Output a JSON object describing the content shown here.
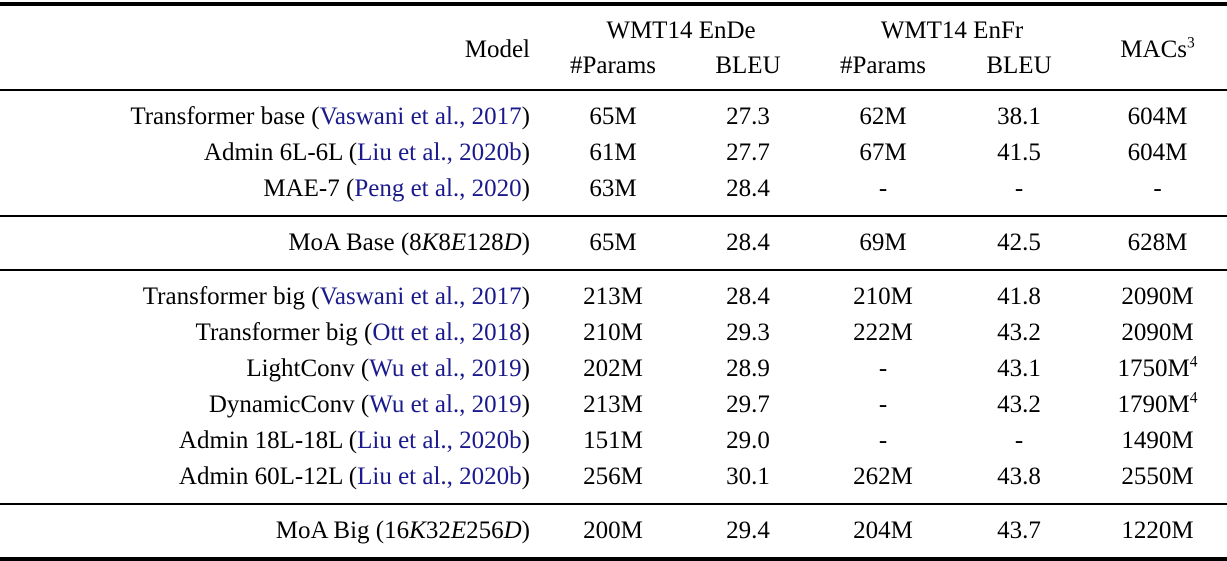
{
  "table": {
    "header": {
      "model": "Model",
      "ende_group": "WMT14 EnDe",
      "enfr_group": "WMT14 EnFr",
      "macs": "MACs",
      "macs_sup": "3",
      "sub": {
        "params1": "#Params",
        "bleu1": "BLEU",
        "params2": "#Params",
        "bleu2": "BLEU"
      }
    },
    "colors": {
      "citation": "#1a1a8c",
      "text": "#000000",
      "rule": "#000000",
      "background": "#ffffff"
    },
    "groups": [
      {
        "rows": [
          {
            "model": {
              "pre": "Transformer base (",
              "cite": "Vaswani et al., 2017",
              "post": ")"
            },
            "cells": [
              "65M",
              "27.3",
              "62M",
              "38.1"
            ],
            "macs": "604M",
            "macs_sup": ""
          },
          {
            "model": {
              "pre": "Admin 6L-6L (",
              "cite": "Liu et al., 2020b",
              "post": ")"
            },
            "cells": [
              "61M",
              "27.7",
              "67M",
              "41.5"
            ],
            "macs": "604M",
            "macs_sup": ""
          },
          {
            "model": {
              "pre": "MAE-7 (",
              "cite": "Peng et al., 2020",
              "post": ")"
            },
            "cells": [
              "63M",
              "28.4",
              "-",
              "-"
            ],
            "macs": "-",
            "macs_sup": ""
          }
        ]
      },
      {
        "rows": [
          {
            "model": {
              "pre": "MoA Base (",
              "math": "8K8E128D",
              "post": ")"
            },
            "cells": [
              "65M",
              "28.4",
              "69M",
              "42.5"
            ],
            "macs": "628M",
            "macs_sup": ""
          }
        ]
      },
      {
        "rows": [
          {
            "model": {
              "pre": "Transformer big (",
              "cite": "Vaswani et al., 2017",
              "post": ")"
            },
            "cells": [
              "213M",
              "28.4",
              "210M",
              "41.8"
            ],
            "macs": "2090M",
            "macs_sup": ""
          },
          {
            "model": {
              "pre": "Transformer big (",
              "cite": "Ott et al., 2018",
              "post": ")"
            },
            "cells": [
              "210M",
              "29.3",
              "222M",
              "43.2"
            ],
            "macs": "2090M",
            "macs_sup": ""
          },
          {
            "model": {
              "pre": "LightConv (",
              "cite": "Wu et al., 2019",
              "post": ")"
            },
            "cells": [
              "202M",
              "28.9",
              "-",
              "43.1"
            ],
            "macs": "1750M",
            "macs_sup": "4"
          },
          {
            "model": {
              "pre": "DynamicConv (",
              "cite": "Wu et al., 2019",
              "post": ")"
            },
            "cells": [
              "213M",
              "29.7",
              "-",
              "43.2"
            ],
            "macs": "1790M",
            "macs_sup": "4"
          },
          {
            "model": {
              "pre": "Admin 18L-18L (",
              "cite": "Liu et al., 2020b",
              "post": ")"
            },
            "cells": [
              "151M",
              "29.0",
              "-",
              "-"
            ],
            "macs": "1490M",
            "macs_sup": ""
          },
          {
            "model": {
              "pre": "Admin 60L-12L (",
              "cite": "Liu et al., 2020b",
              "post": ")"
            },
            "cells": [
              "256M",
              "30.1",
              "262M",
              "43.8"
            ],
            "macs": "2550M",
            "macs_sup": ""
          }
        ]
      },
      {
        "rows": [
          {
            "model": {
              "pre": "MoA Big (",
              "math": "16K32E256D",
              "post": ")"
            },
            "cells": [
              "200M",
              "29.4",
              "204M",
              "43.7"
            ],
            "macs": "1220M",
            "macs_sup": ""
          }
        ]
      }
    ]
  }
}
